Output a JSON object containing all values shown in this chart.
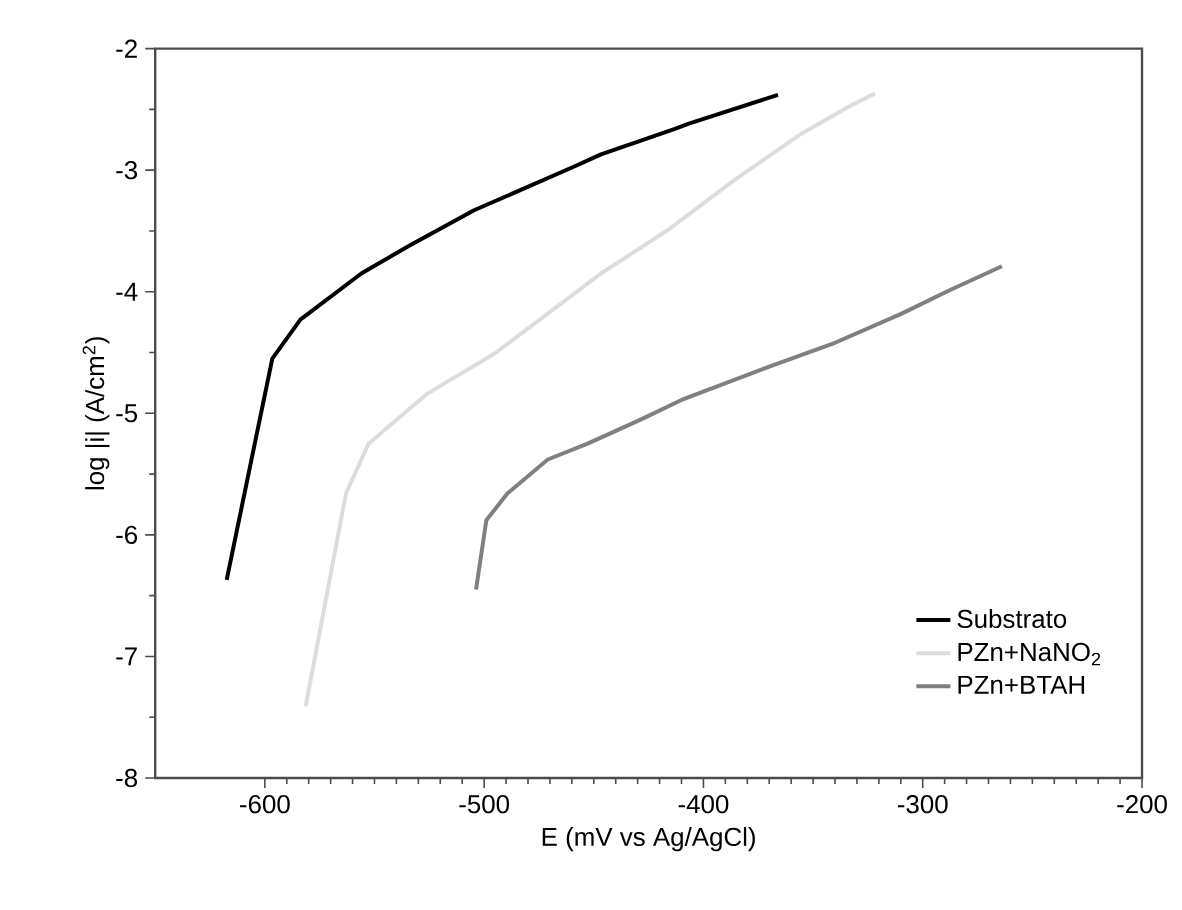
{
  "chart_data": {
    "type": "line",
    "xlabel": "E (mV vs Ag/AgCl)",
    "ylabel": "log |i| (A/cm$^{2}$)",
    "xlim": [
      -650,
      -200
    ],
    "xticks": [
      -600,
      -500,
      -400,
      -300,
      -200
    ],
    "ylim": [
      -8,
      -2
    ],
    "yticks": [
      -8,
      -7,
      -6,
      -5,
      -4,
      -3,
      -2
    ],
    "legend": "bottom right",
    "grid": false,
    "marker": "none",
    "line_style": "solid",
    "series": [
      {
        "name": "Substrato",
        "color": "#000000",
        "x": [
          -617.4,
          -596.6,
          -583.8,
          -556,
          -535,
          -504.6,
          -458.9,
          -446.7,
          -413,
          -407,
          -366
        ],
        "values": [
          -6.37,
          -4.55,
          -4.23,
          -3.85,
          -3.63,
          -3.33,
          -2.97,
          -2.87,
          -2.66,
          -2.62,
          -2.38
        ]
      },
      {
        "name": "PZn+NaNO$_{2}$",
        "color": "#dcdcdc",
        "x": [
          -581.4,
          -563,
          -552.7,
          -526,
          -495.4,
          -471,
          -446.7,
          -416,
          -385.8,
          -355.3,
          -334,
          -321.8
        ],
        "values": [
          -7.41,
          -5.66,
          -5.25,
          -4.84,
          -4.51,
          -4.18,
          -3.85,
          -3.49,
          -3.08,
          -2.7,
          -2.48,
          -2.37
        ]
      },
      {
        "name": "PZn+BTAH",
        "color": "#808080",
        "x": [
          -503.7,
          -499,
          -489.4,
          -471,
          -452.8,
          -428.4,
          -410,
          -370.6,
          -340,
          -309.6,
          -288,
          -263.9
        ],
        "values": [
          -6.45,
          -5.88,
          -5.66,
          -5.38,
          -5.25,
          -5.05,
          -4.89,
          -4.62,
          -4.42,
          -4.18,
          -3.99,
          -3.79
        ]
      }
    ]
  }
}
